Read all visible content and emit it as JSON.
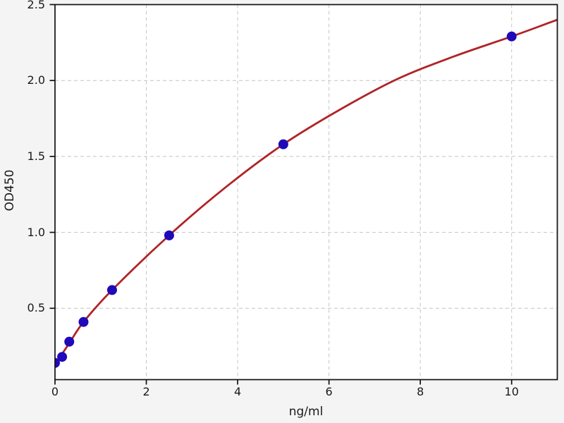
{
  "figure": {
    "background": "#f4f4f4",
    "plot_background": "#ffffff"
  },
  "chart_data": {
    "type": "scatter",
    "title": "",
    "xlabel": "ng/ml",
    "ylabel": "OD450",
    "xlim": [
      0,
      11
    ],
    "ylim": [
      0.03,
      2.5
    ],
    "grid": "dashed",
    "legend": "none",
    "x_ticks": [
      {
        "value": 0,
        "label": "0"
      },
      {
        "value": 2,
        "label": "2"
      },
      {
        "value": 4,
        "label": "4"
      },
      {
        "value": 6,
        "label": "6"
      },
      {
        "value": 8,
        "label": "8"
      },
      {
        "value": 10,
        "label": "10"
      }
    ],
    "y_ticks": [
      {
        "value": 0.5,
        "label": "0.5"
      },
      {
        "value": 1.0,
        "label": "1.0"
      },
      {
        "value": 1.5,
        "label": "1.5"
      },
      {
        "value": 2.0,
        "label": "2.0"
      },
      {
        "value": 2.5,
        "label": "2.5"
      }
    ],
    "series": [
      {
        "name": "standard-points",
        "type": "scatter",
        "marker": "circle",
        "color": "#2009b8",
        "points": [
          [
            0,
            0.14
          ],
          [
            0.156,
            0.18
          ],
          [
            0.3125,
            0.28
          ],
          [
            0.625,
            0.41
          ],
          [
            1.25,
            0.62
          ],
          [
            2.5,
            0.98
          ],
          [
            5,
            1.58
          ],
          [
            10,
            2.29
          ]
        ]
      },
      {
        "name": "fit-curve",
        "type": "line",
        "color": "#b02428",
        "points": [
          [
            0,
            0.13
          ],
          [
            0.3125,
            0.27
          ],
          [
            0.625,
            0.41
          ],
          [
            1.25,
            0.62
          ],
          [
            2.5,
            0.98
          ],
          [
            3.75,
            1.3
          ],
          [
            5,
            1.58
          ],
          [
            6.25,
            1.81
          ],
          [
            7.5,
            2.01
          ],
          [
            8.75,
            2.16
          ],
          [
            10,
            2.29
          ],
          [
            11,
            2.4
          ]
        ]
      }
    ],
    "colors": {
      "grid": "#c4c4c4",
      "spine": "#111111",
      "tick_label": "#1a1a1a"
    }
  }
}
